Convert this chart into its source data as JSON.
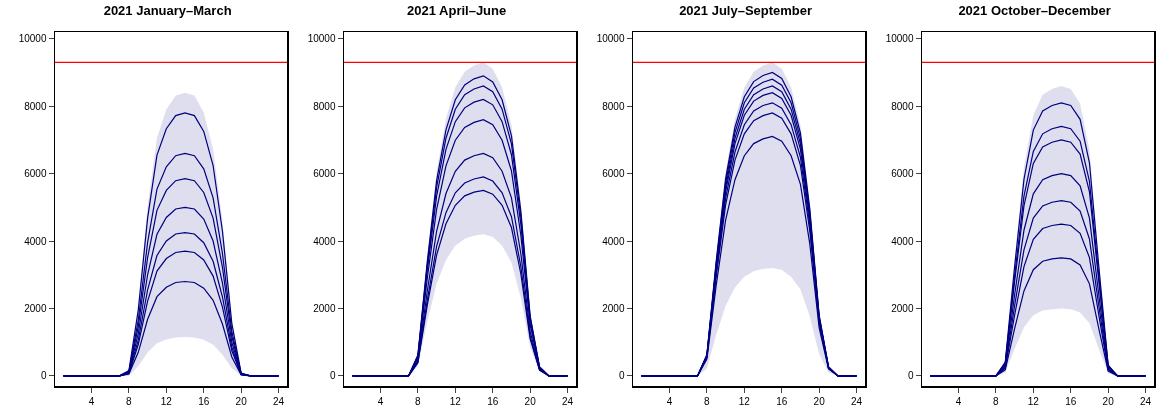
{
  "chart_data": [
    {
      "type": "line",
      "title": "2021 January–March",
      "x": [
        1,
        2,
        3,
        4,
        5,
        6,
        7,
        8,
        9,
        10,
        11,
        12,
        13,
        14,
        15,
        16,
        17,
        18,
        19,
        20,
        21,
        22,
        23,
        24
      ],
      "xlim": [
        0.1,
        24.9
      ],
      "xticks": [
        4,
        8,
        12,
        16,
        20,
        24
      ],
      "ylim": [
        -300,
        10200
      ],
      "yticks": [
        0,
        2000,
        4000,
        6000,
        8000,
        10000
      ],
      "marker": "none",
      "line_style": "solid",
      "ref_lines": [
        {
          "axis": "y",
          "value": 9300,
          "color": "#ff0000"
        }
      ],
      "series": [
        {
          "color": "#000080",
          "values": [
            0,
            0,
            0,
            0,
            0,
            0,
            0,
            160,
            1950,
            4680,
            6550,
            7330,
            7720,
            7800,
            7720,
            7250,
            6240,
            4290,
            1560,
            80,
            0,
            0,
            0,
            0
          ],
          "lower": [
            0,
            0,
            0,
            0,
            0,
            0,
            0,
            0,
            290,
            690,
            970,
            1080,
            1140,
            1150,
            1140,
            1070,
            920,
            630,
            230,
            10,
            0,
            0,
            0,
            0
          ],
          "upper": [
            0,
            0,
            0,
            0,
            0,
            0,
            0,
            170,
            2100,
            5040,
            7060,
            7900,
            8320,
            8400,
            8320,
            7810,
            6720,
            4620,
            1680,
            80,
            0,
            0,
            0,
            0
          ]
        },
        {
          "color": "#000080",
          "values": [
            0,
            0,
            0,
            0,
            0,
            0,
            0,
            130,
            1650,
            3960,
            5540,
            6200,
            6530,
            6600,
            6530,
            6140,
            5280,
            3630,
            1320,
            70,
            0,
            0,
            0,
            0
          ]
        },
        {
          "color": "#000080",
          "values": [
            0,
            0,
            0,
            0,
            0,
            0,
            0,
            120,
            1460,
            3510,
            4910,
            5500,
            5790,
            5850,
            5790,
            5440,
            4680,
            3220,
            1170,
            60,
            0,
            0,
            0,
            0
          ]
        },
        {
          "color": "#000080",
          "values": [
            0,
            0,
            0,
            0,
            0,
            0,
            0,
            100,
            1250,
            3000,
            4200,
            4700,
            4950,
            5000,
            4950,
            4650,
            4000,
            2750,
            1000,
            50,
            0,
            0,
            0,
            0
          ]
        },
        {
          "color": "#000080",
          "values": [
            0,
            0,
            0,
            0,
            0,
            0,
            0,
            90,
            1060,
            2550,
            3570,
            4000,
            4210,
            4250,
            4210,
            3950,
            3400,
            2340,
            850,
            40,
            0,
            0,
            0,
            0
          ]
        },
        {
          "color": "#000080",
          "values": [
            0,
            0,
            0,
            0,
            0,
            0,
            0,
            70,
            930,
            2220,
            3110,
            3480,
            3660,
            3700,
            3660,
            3440,
            2960,
            2040,
            740,
            40,
            0,
            0,
            0,
            0
          ]
        },
        {
          "color": "#000080",
          "values": [
            0,
            0,
            0,
            0,
            0,
            0,
            0,
            60,
            700,
            1680,
            2350,
            2630,
            2770,
            2800,
            2770,
            2600,
            2240,
            1540,
            560,
            30,
            0,
            0,
            0,
            0
          ]
        }
      ]
    },
    {
      "type": "line",
      "title": "2021 April–June",
      "x": [
        1,
        2,
        3,
        4,
        5,
        6,
        7,
        8,
        9,
        10,
        11,
        12,
        13,
        14,
        15,
        16,
        17,
        18,
        19,
        20,
        21,
        22,
        23,
        24
      ],
      "xlim": [
        0.1,
        24.9
      ],
      "xticks": [
        4,
        8,
        12,
        16,
        20,
        24
      ],
      "ylim": [
        -300,
        10200
      ],
      "yticks": [
        0,
        2000,
        4000,
        6000,
        8000,
        10000
      ],
      "marker": "none",
      "line_style": "solid",
      "ref_lines": [
        {
          "axis": "y",
          "value": 9300,
          "color": "#ff0000"
        }
      ],
      "series": [
        {
          "color": "#000080",
          "values": [
            0,
            0,
            0,
            0,
            0,
            0,
            0,
            620,
            3380,
            5790,
            7300,
            8190,
            8630,
            8810,
            8900,
            8720,
            8190,
            7120,
            4900,
            1780,
            270,
            0,
            0,
            0
          ],
          "lower": [
            0,
            0,
            0,
            0,
            0,
            0,
            0,
            290,
            1600,
            2730,
            3440,
            3860,
            4070,
            4160,
            4200,
            4120,
            3860,
            3360,
            2310,
            840,
            130,
            0,
            0,
            0
          ],
          "upper": [
            0,
            0,
            0,
            0,
            0,
            0,
            0,
            650,
            3530,
            6050,
            7630,
            8560,
            9020,
            9210,
            9300,
            9110,
            8560,
            7440,
            5120,
            1860,
            280,
            0,
            0,
            0
          ]
        },
        {
          "color": "#000080",
          "values": [
            0,
            0,
            0,
            0,
            0,
            0,
            0,
            600,
            3270,
            5590,
            7050,
            7910,
            8340,
            8510,
            8600,
            8430,
            7910,
            6880,
            4730,
            1720,
            260,
            0,
            0,
            0
          ]
        },
        {
          "color": "#000080",
          "values": [
            0,
            0,
            0,
            0,
            0,
            0,
            0,
            570,
            3120,
            5330,
            6720,
            7540,
            7950,
            8120,
            8200,
            8040,
            7540,
            6560,
            4510,
            1640,
            250,
            0,
            0,
            0
          ]
        },
        {
          "color": "#000080",
          "values": [
            0,
            0,
            0,
            0,
            0,
            0,
            0,
            530,
            2890,
            4940,
            6230,
            6990,
            7370,
            7520,
            7600,
            7450,
            6990,
            6080,
            4180,
            1520,
            230,
            0,
            0,
            0
          ]
        },
        {
          "color": "#000080",
          "values": [
            0,
            0,
            0,
            0,
            0,
            0,
            0,
            460,
            2510,
            4290,
            5410,
            6070,
            6400,
            6530,
            6600,
            6470,
            6070,
            5280,
            3630,
            1320,
            200,
            0,
            0,
            0
          ]
        },
        {
          "color": "#000080",
          "values": [
            0,
            0,
            0,
            0,
            0,
            0,
            0,
            410,
            2240,
            3840,
            4840,
            5430,
            5720,
            5840,
            5900,
            5780,
            5430,
            4720,
            3250,
            1180,
            180,
            0,
            0,
            0
          ]
        },
        {
          "color": "#000080",
          "values": [
            0,
            0,
            0,
            0,
            0,
            0,
            0,
            390,
            2090,
            3580,
            4510,
            5060,
            5340,
            5450,
            5500,
            5390,
            5060,
            4400,
            3030,
            1100,
            170,
            0,
            0,
            0
          ]
        }
      ]
    },
    {
      "type": "line",
      "title": "2021 July–September",
      "x": [
        1,
        2,
        3,
        4,
        5,
        6,
        7,
        8,
        9,
        10,
        11,
        12,
        13,
        14,
        15,
        16,
        17,
        18,
        19,
        20,
        21,
        22,
        23,
        24
      ],
      "xlim": [
        0.1,
        24.9
      ],
      "xticks": [
        4,
        8,
        12,
        16,
        20,
        24
      ],
      "ylim": [
        -300,
        10200
      ],
      "yticks": [
        0,
        2000,
        4000,
        6000,
        8000,
        10000
      ],
      "marker": "none",
      "line_style": "solid",
      "ref_lines": [
        {
          "axis": "y",
          "value": 9300,
          "color": "#ff0000"
        }
      ],
      "series": [
        {
          "color": "#000080",
          "values": [
            0,
            0,
            0,
            0,
            0,
            0,
            0,
            630,
            3420,
            5850,
            7380,
            8280,
            8730,
            8910,
            9000,
            8820,
            8280,
            7200,
            4950,
            1800,
            270,
            0,
            0,
            0
          ],
          "lower": [
            0,
            0,
            0,
            0,
            0,
            0,
            0,
            220,
            1220,
            2080,
            2620,
            2940,
            3100,
            3170,
            3200,
            3140,
            2940,
            2560,
            1760,
            640,
            100,
            0,
            0,
            0
          ],
          "upper": [
            0,
            0,
            0,
            0,
            0,
            0,
            0,
            650,
            3530,
            6050,
            7630,
            8560,
            9020,
            9210,
            9300,
            9110,
            8560,
            7440,
            5120,
            1860,
            280,
            0,
            0,
            0
          ]
        },
        {
          "color": "#000080",
          "values": [
            0,
            0,
            0,
            0,
            0,
            0,
            0,
            620,
            3340,
            5720,
            7220,
            8100,
            8540,
            8710,
            8800,
            8620,
            8100,
            7040,
            4840,
            1760,
            260,
            0,
            0,
            0
          ]
        },
        {
          "color": "#000080",
          "values": [
            0,
            0,
            0,
            0,
            0,
            0,
            0,
            600,
            3270,
            5590,
            7050,
            7910,
            8340,
            8510,
            8600,
            8430,
            7910,
            6880,
            4730,
            1720,
            260,
            0,
            0,
            0
          ]
        },
        {
          "color": "#000080",
          "values": [
            0,
            0,
            0,
            0,
            0,
            0,
            0,
            590,
            3190,
            5460,
            6890,
            7730,
            8150,
            8320,
            8400,
            8230,
            7730,
            6720,
            4620,
            1680,
            250,
            0,
            0,
            0
          ]
        },
        {
          "color": "#000080",
          "values": [
            0,
            0,
            0,
            0,
            0,
            0,
            0,
            570,
            3080,
            5270,
            6640,
            7450,
            7860,
            8020,
            8100,
            7940,
            7450,
            6480,
            4460,
            1620,
            240,
            0,
            0,
            0
          ]
        },
        {
          "color": "#000080",
          "values": [
            0,
            0,
            0,
            0,
            0,
            0,
            0,
            550,
            2960,
            5070,
            6400,
            7180,
            7570,
            7720,
            7800,
            7640,
            7180,
            6240,
            4290,
            1560,
            230,
            0,
            0,
            0
          ]
        },
        {
          "color": "#000080",
          "values": [
            0,
            0,
            0,
            0,
            0,
            0,
            0,
            500,
            2700,
            4620,
            5820,
            6530,
            6890,
            7030,
            7100,
            6960,
            6530,
            5680,
            3910,
            1420,
            210,
            0,
            0,
            0
          ]
        }
      ]
    },
    {
      "type": "line",
      "title": "2021 October–December",
      "x": [
        1,
        2,
        3,
        4,
        5,
        6,
        7,
        8,
        9,
        10,
        11,
        12,
        13,
        14,
        15,
        16,
        17,
        18,
        19,
        20,
        21,
        22,
        23,
        24
      ],
      "xlim": [
        0.1,
        24.9
      ],
      "xticks": [
        4,
        8,
        12,
        16,
        20,
        24
      ],
      "ylim": [
        -300,
        10200
      ],
      "yticks": [
        0,
        2000,
        4000,
        6000,
        8000,
        10000
      ],
      "marker": "none",
      "line_style": "solid",
      "ref_lines": [
        {
          "axis": "y",
          "value": 9300,
          "color": "#ff0000"
        }
      ],
      "series": [
        {
          "color": "#000080",
          "values": [
            0,
            0,
            0,
            0,
            0,
            0,
            0,
            0,
            410,
            3240,
            5830,
            7290,
            7860,
            8020,
            8100,
            8020,
            7610,
            6320,
            3240,
            320,
            0,
            0,
            0,
            0
          ],
          "lower": [
            0,
            0,
            0,
            0,
            0,
            0,
            0,
            0,
            100,
            800,
            1440,
            1800,
            1940,
            1980,
            2000,
            1980,
            1880,
            1560,
            800,
            80,
            0,
            0,
            0,
            0
          ],
          "upper": [
            0,
            0,
            0,
            0,
            0,
            0,
            0,
            0,
            430,
            3440,
            6190,
            7740,
            8340,
            8510,
            8600,
            8510,
            8080,
            6710,
            3440,
            340,
            0,
            0,
            0,
            0
          ]
        },
        {
          "color": "#000080",
          "values": [
            0,
            0,
            0,
            0,
            0,
            0,
            0,
            0,
            370,
            2960,
            5330,
            6660,
            7180,
            7330,
            7400,
            7330,
            6960,
            5770,
            2960,
            300,
            0,
            0,
            0,
            0
          ]
        },
        {
          "color": "#000080",
          "values": [
            0,
            0,
            0,
            0,
            0,
            0,
            0,
            0,
            350,
            2800,
            5040,
            6300,
            6790,
            6930,
            7000,
            6930,
            6580,
            5460,
            2800,
            280,
            0,
            0,
            0,
            0
          ]
        },
        {
          "color": "#000080",
          "values": [
            0,
            0,
            0,
            0,
            0,
            0,
            0,
            0,
            300,
            2400,
            4320,
            5400,
            5820,
            5940,
            6000,
            5940,
            5640,
            4680,
            2400,
            240,
            0,
            0,
            0,
            0
          ]
        },
        {
          "color": "#000080",
          "values": [
            0,
            0,
            0,
            0,
            0,
            0,
            0,
            0,
            260,
            2080,
            3740,
            4680,
            5040,
            5150,
            5200,
            5150,
            4890,
            4060,
            2080,
            210,
            0,
            0,
            0,
            0
          ]
        },
        {
          "color": "#000080",
          "values": [
            0,
            0,
            0,
            0,
            0,
            0,
            0,
            0,
            230,
            1800,
            3240,
            4050,
            4370,
            4460,
            4500,
            4460,
            4230,
            3510,
            1800,
            180,
            0,
            0,
            0,
            0
          ]
        },
        {
          "color": "#000080",
          "values": [
            0,
            0,
            0,
            0,
            0,
            0,
            0,
            0,
            180,
            1400,
            2520,
            3150,
            3400,
            3470,
            3500,
            3470,
            3290,
            2730,
            1400,
            140,
            0,
            0,
            0,
            0
          ]
        }
      ]
    }
  ]
}
